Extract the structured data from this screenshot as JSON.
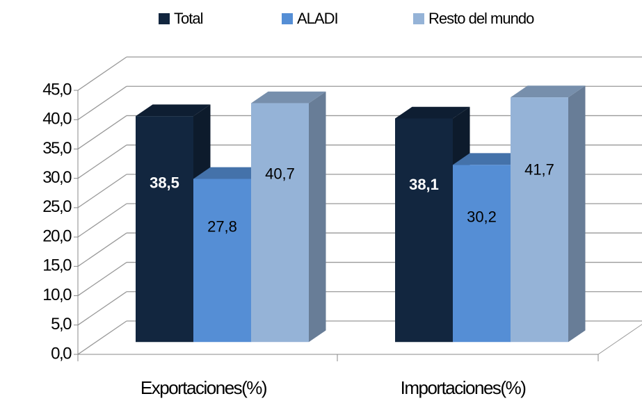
{
  "chart_data": {
    "type": "bar3d",
    "categories": [
      "Exportaciones(%)",
      "Importaciones(%)"
    ],
    "series": [
      {
        "name": "Total",
        "color": "#12263f",
        "values": [
          38.5,
          38.1
        ],
        "value_labels": [
          "38,5",
          "38,1"
        ]
      },
      {
        "name": "ALADI",
        "color": "#558ed5",
        "values": [
          27.8,
          30.2
        ],
        "value_labels": [
          "27,8",
          "30,2"
        ]
      },
      {
        "name": "Resto del mundo",
        "color": "#95b3d7",
        "values": [
          40.7,
          41.7
        ],
        "value_labels": [
          "40,7",
          "41,7"
        ]
      }
    ],
    "ylim": [
      0,
      45
    ],
    "yticks": [
      {
        "value": 0,
        "label": "0,0"
      },
      {
        "value": 5,
        "label": "5,0"
      },
      {
        "value": 10,
        "label": "10,0"
      },
      {
        "value": 15,
        "label": "15,0"
      },
      {
        "value": 20,
        "label": "20,0"
      },
      {
        "value": 25,
        "label": "25,0"
      },
      {
        "value": 30,
        "label": "30,0"
      },
      {
        "value": 35,
        "label": "35,0"
      },
      {
        "value": 40,
        "label": "40,0"
      },
      {
        "value": 45,
        "label": "45,0"
      }
    ],
    "grid": true,
    "legend": "top"
  }
}
